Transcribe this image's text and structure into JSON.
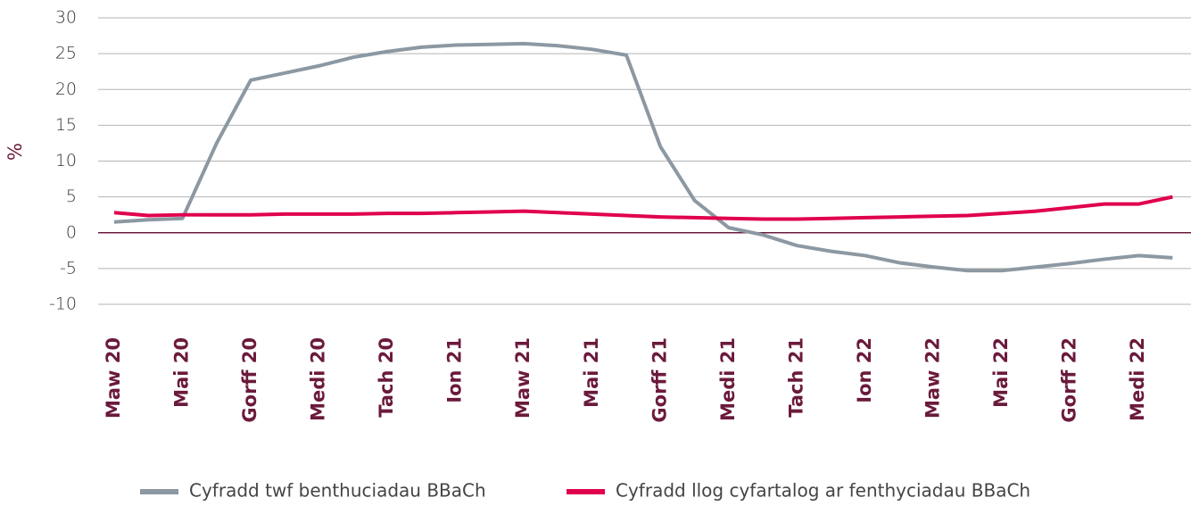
{
  "chart_data": {
    "type": "line",
    "y_label": "%",
    "categories": [
      "Maw 20",
      null,
      "Mai 20",
      null,
      "Gorff 20",
      null,
      "Medi 20",
      null,
      "Tach 20",
      null,
      "Ion 21",
      null,
      "Maw 21",
      null,
      "Mai 21",
      null,
      "Gorff 21",
      null,
      "Medi 21",
      null,
      "Tach 21",
      null,
      "Ion 22",
      null,
      "Maw 22",
      null,
      "Mai 22",
      null,
      "Gorff 22",
      null,
      "Medi 22",
      null
    ],
    "series": [
      {
        "name": "Cyfradd twf benthuciadau BBaCh",
        "color": "#8c98a2",
        "values": [
          1.5,
          1.8,
          2.0,
          12.5,
          21.3,
          22.3,
          23.3,
          24.5,
          25.3,
          25.9,
          26.2,
          26.3,
          26.4,
          26.1,
          25.6,
          24.8,
          12.0,
          4.5,
          0.7,
          -0.3,
          -1.8,
          -2.6,
          -3.2,
          -4.2,
          -4.8,
          -5.3,
          -5.3,
          -4.8,
          -4.3,
          -3.7,
          -3.2,
          -3.5
        ]
      },
      {
        "name": "Cyfradd llog cyfartalog ar fenthyciadau BBaCh",
        "color": "#e0004d",
        "values": [
          2.8,
          2.4,
          2.5,
          2.5,
          2.5,
          2.6,
          2.6,
          2.6,
          2.7,
          2.7,
          2.8,
          2.9,
          3.0,
          2.8,
          2.6,
          2.4,
          2.2,
          2.1,
          2.0,
          1.9,
          1.9,
          2.0,
          2.1,
          2.2,
          2.3,
          2.4,
          2.7,
          3.0,
          3.5,
          4.0,
          4.0,
          5.0
        ]
      }
    ],
    "ylim": [
      -10,
      30
    ],
    "yticks": [
      -10,
      -5,
      0,
      5,
      10,
      15,
      20,
      25,
      30
    ],
    "grid": true
  }
}
